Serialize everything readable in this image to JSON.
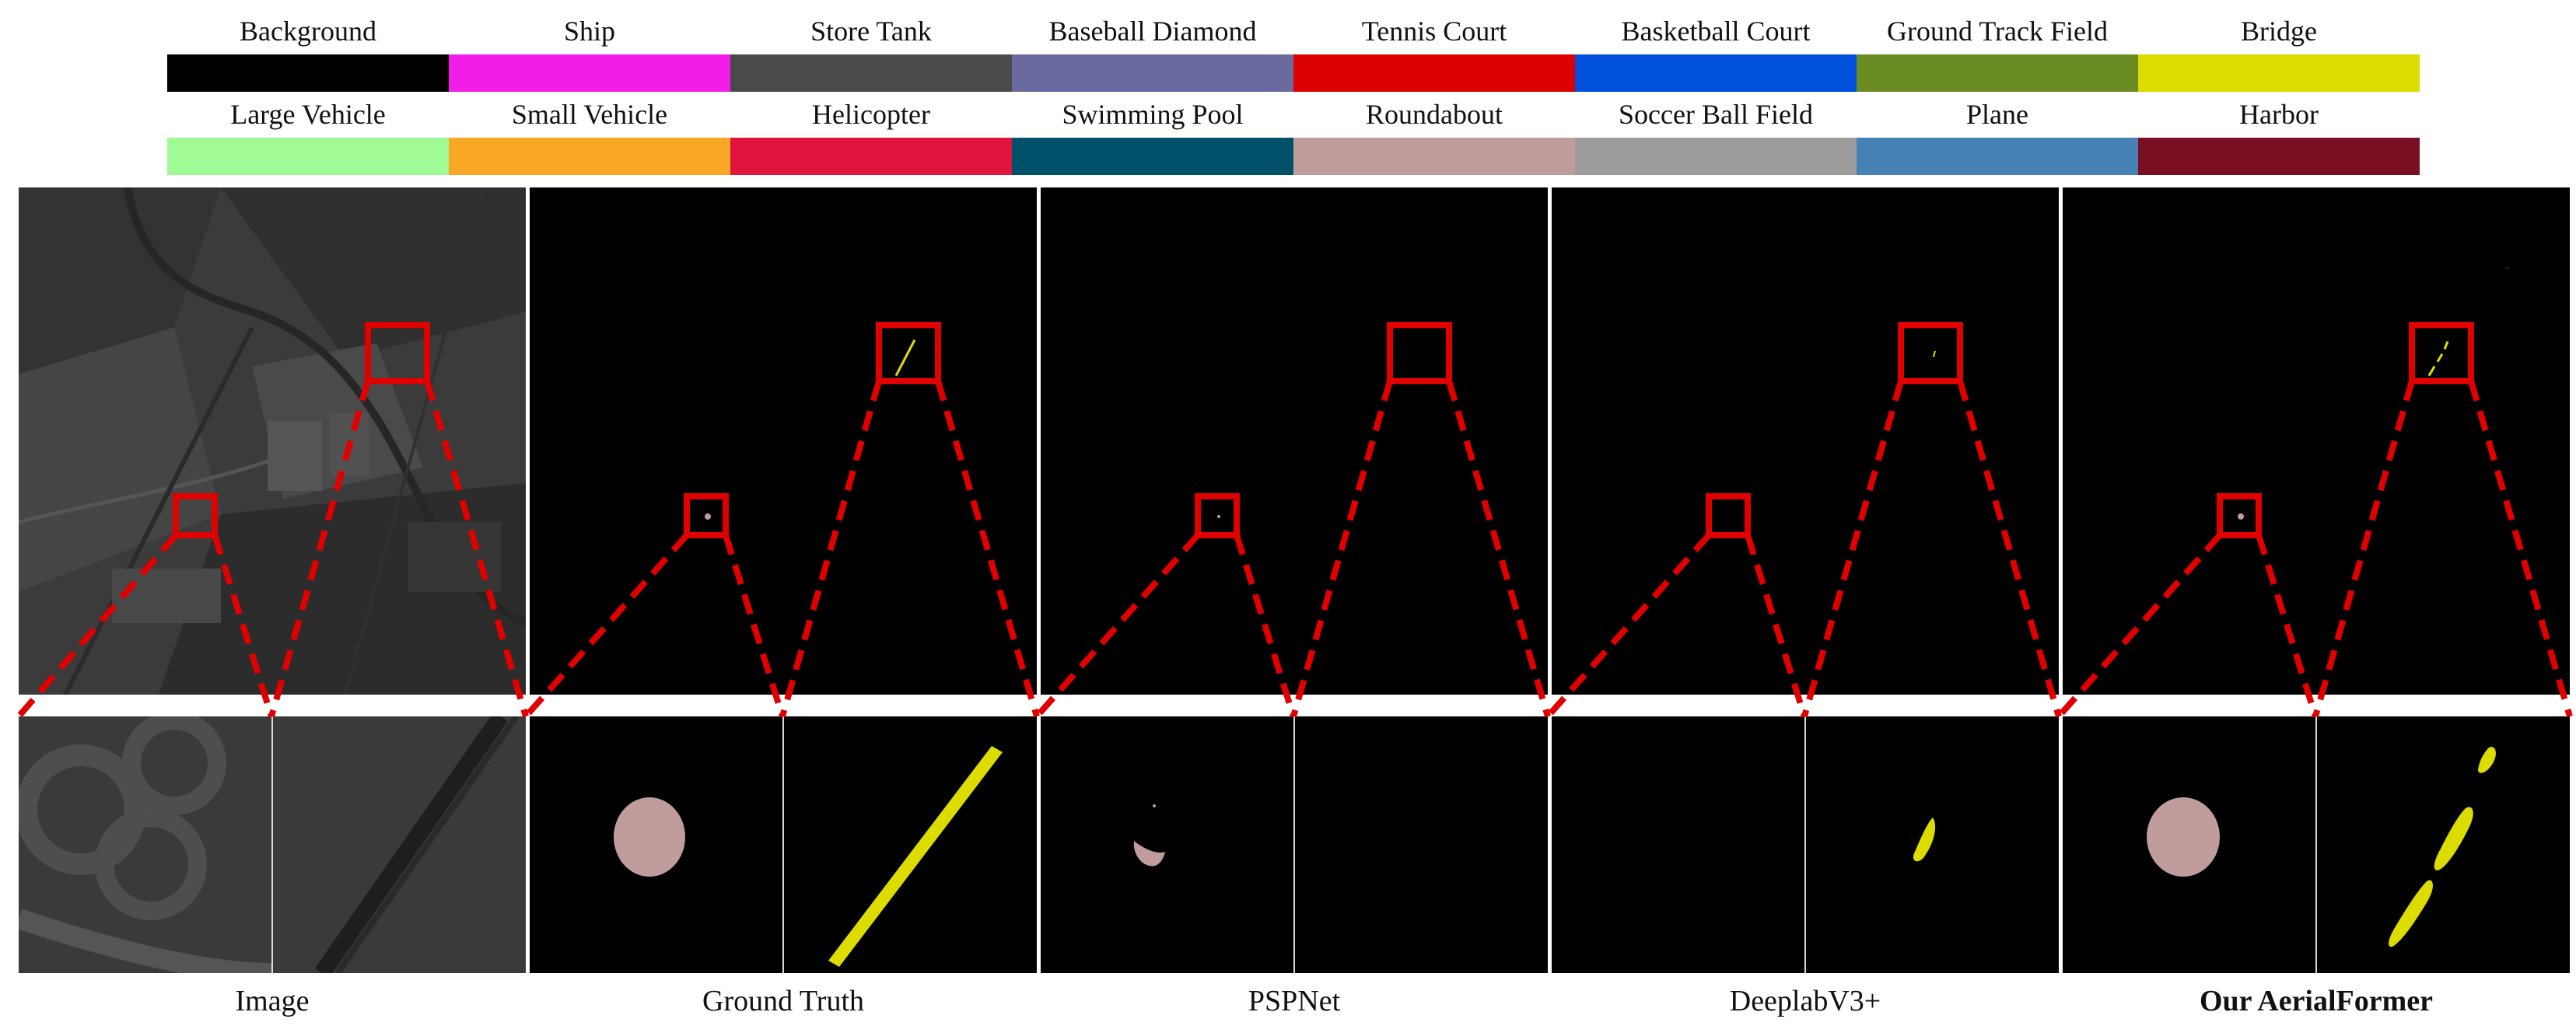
{
  "legend": {
    "row1": [
      {
        "label": "Background",
        "color": "#000000"
      },
      {
        "label": "Ship",
        "color": "#f21ee8"
      },
      {
        "label": "Store Tank",
        "color": "#4a4a4a"
      },
      {
        "label": "Baseball Diamond",
        "color": "#6a6a9e"
      },
      {
        "label": "Tennis Court",
        "color": "#dd0000"
      },
      {
        "label": "Basketball Court",
        "color": "#0050dc"
      },
      {
        "label": "Ground Track Field",
        "color": "#6b8c23"
      },
      {
        "label": "Bridge",
        "color": "#dcdc00"
      }
    ],
    "row2": [
      {
        "label": "Large Vehicle",
        "color": "#a0fa96"
      },
      {
        "label": "Small Vehicle",
        "color": "#f9a825"
      },
      {
        "label": "Helicopter",
        "color": "#e0143c"
      },
      {
        "label": "Swimming Pool",
        "color": "#00506a"
      },
      {
        "label": "Roundabout",
        "color": "#c09c9c"
      },
      {
        "label": "Soccer Ball Field",
        "color": "#9c9c9c"
      },
      {
        "label": "Plane",
        "color": "#4682b4"
      },
      {
        "label": "Harbor",
        "color": "#7a0f23"
      }
    ]
  },
  "panels": [
    {
      "caption": "Image"
    },
    {
      "caption": "Ground Truth"
    },
    {
      "caption": "PSPNet"
    },
    {
      "caption": "DeeplabV3+"
    },
    {
      "caption": "Our AerialFormer"
    }
  ],
  "colors": {
    "zoom_box": "#e00000",
    "roundabout": "#c09c9c",
    "bridge": "#dcdc00"
  }
}
